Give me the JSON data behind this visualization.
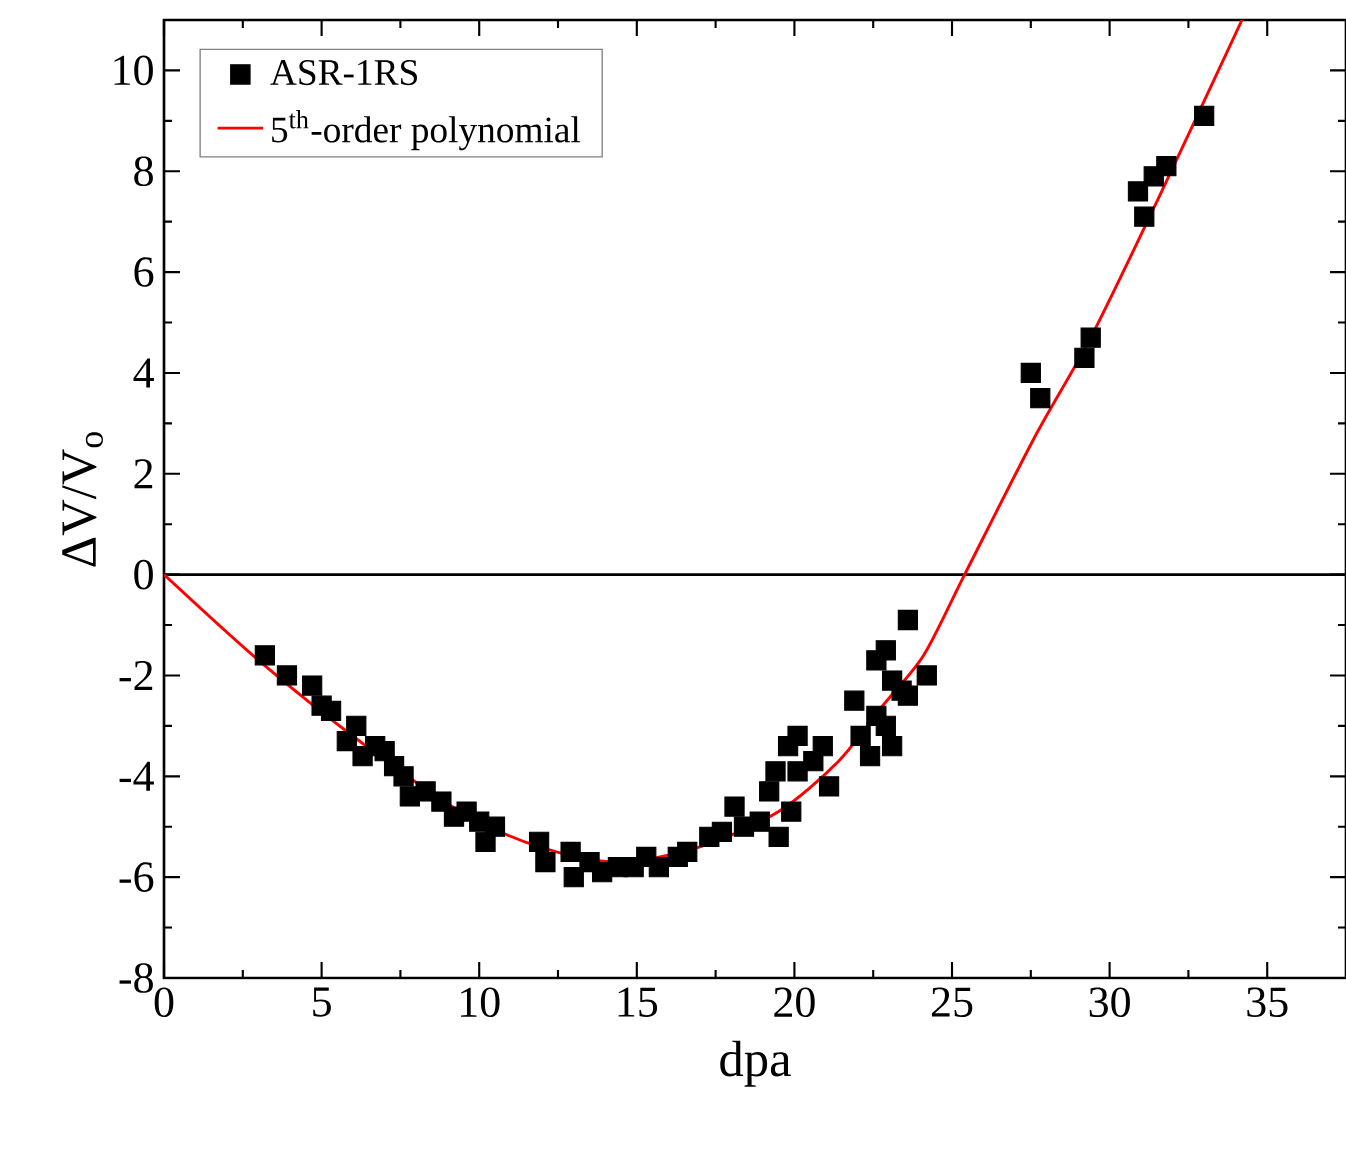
{
  "chart_data": {
    "type": "scatter",
    "xlabel": "dpa",
    "ylabel": "ΔV/V$_{o}$",
    "xlim": [
      0,
      37.5
    ],
    "ylim": [
      -8,
      11
    ],
    "xticks": [
      0,
      5,
      10,
      15,
      20,
      25,
      30,
      35
    ],
    "yticks": [
      -8,
      -6,
      -4,
      -2,
      0,
      2,
      4,
      6,
      8,
      10
    ],
    "grid": false,
    "legend": "top left",
    "ref_lines": [
      {
        "axis": "y",
        "value": 0,
        "color": "#000000"
      }
    ],
    "series": [
      {
        "name": "ASR-1RS",
        "color": "#000000",
        "marker": "square",
        "x": [
          3.2,
          3.9,
          4.7,
          5.0,
          5.3,
          5.8,
          6.1,
          6.3,
          6.7,
          7.0,
          7.3,
          7.6,
          7.8,
          8.3,
          8.8,
          9.2,
          9.6,
          10.0,
          10.2,
          10.5,
          11.9,
          12.1,
          12.9,
          13.0,
          13.5,
          13.9,
          14.4,
          14.9,
          15.3,
          15.7,
          16.3,
          16.6,
          17.3,
          17.7,
          18.1,
          18.4,
          18.9,
          19.2,
          19.4,
          19.5,
          19.8,
          19.9,
          20.1,
          20.1,
          20.6,
          20.9,
          21.1,
          21.9,
          22.1,
          22.4,
          22.6,
          22.6,
          22.9,
          22.9,
          23.1,
          23.4,
          23.1,
          23.6,
          23.6,
          24.2,
          27.5,
          27.8,
          29.2,
          29.4,
          30.9,
          31.1,
          31.4,
          31.8,
          33.0
        ],
        "values": [
          -1.6,
          -2.0,
          -2.2,
          -2.6,
          -2.7,
          -3.3,
          -3.0,
          -3.6,
          -3.4,
          -3.5,
          -3.8,
          -4.0,
          -4.4,
          -4.3,
          -4.5,
          -4.8,
          -4.7,
          -4.9,
          -5.3,
          -5.0,
          -5.3,
          -5.7,
          -5.5,
          -6.0,
          -5.7,
          -5.9,
          -5.8,
          -5.8,
          -5.6,
          -5.8,
          -5.6,
          -5.5,
          -5.2,
          -5.1,
          -4.6,
          -5.0,
          -4.9,
          -4.3,
          -3.9,
          -5.2,
          -3.4,
          -4.7,
          -3.9,
          -3.2,
          -3.7,
          -3.4,
          -4.2,
          -2.5,
          -3.2,
          -3.6,
          -2.8,
          -1.7,
          -1.5,
          -3.0,
          -2.1,
          -2.3,
          -3.4,
          -0.9,
          -2.4,
          -2.0,
          4.0,
          3.5,
          4.3,
          4.7,
          7.6,
          7.1,
          7.9,
          8.1,
          9.1
        ]
      },
      {
        "type": "line",
        "name": "5$^{th}$-order polynomial",
        "color": "#ff0000",
        "marker": "none",
        "line_style": "solid",
        "x": [
          0,
          3.0,
          6.2,
          9.4,
          11.9,
          14.4,
          17.0,
          19.5,
          21.4,
          22.8,
          24.1,
          25.4,
          27.6,
          29.4,
          31.5,
          34.2
        ],
        "values": [
          0,
          -1.7,
          -3.3,
          -4.7,
          -5.4,
          -5.7,
          -5.4,
          -4.7,
          -3.7,
          -2.6,
          -1.6,
          0,
          2.7,
          4.7,
          7.4,
          11
        ]
      }
    ]
  }
}
